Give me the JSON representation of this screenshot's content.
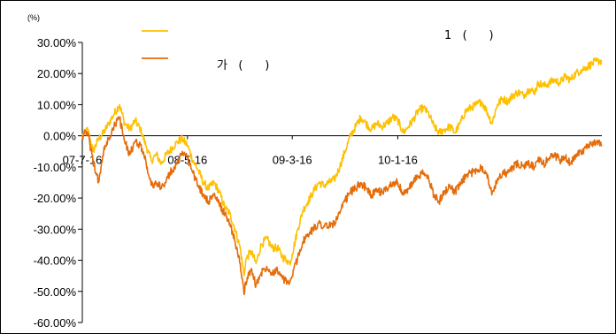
{
  "chart_data": {
    "type": "line",
    "title": "",
    "ylabel": "",
    "unit_label": "(%)",
    "xlabel": "",
    "ylim": [
      -60,
      30
    ],
    "yticks": [
      30,
      20,
      10,
      0,
      -10,
      -20,
      -30,
      -40,
      -50,
      -60
    ],
    "ytick_labels": [
      "30.00%",
      "20.00%",
      "10.00%",
      "0.00%",
      "-10.00%",
      "-20.00%",
      "-30.00%",
      "-40.00%",
      "-50.00%",
      "-60.00%"
    ],
    "x_start": "2007-07-16",
    "x_end": "2011-08-31",
    "xticks": [
      "2007-07-16",
      "2008-05-16",
      "2009-03-16",
      "2010-01-16"
    ],
    "xtick_labels": [
      "07-7-16",
      "08-5-16",
      "09-3-16",
      "10-1-16"
    ],
    "grid": false,
    "legend_position": "top",
    "series": [
      {
        "name": "1   (      )",
        "color": "#FFC000",
        "points": [
          [
            "2007-07-16",
            0
          ],
          [
            "2007-08-01",
            2
          ],
          [
            "2007-08-16",
            -5
          ],
          [
            "2007-09-01",
            -1
          ],
          [
            "2007-09-16",
            1
          ],
          [
            "2007-10-01",
            4
          ],
          [
            "2007-10-16",
            7
          ],
          [
            "2007-11-01",
            10
          ],
          [
            "2007-11-16",
            4
          ],
          [
            "2007-12-01",
            2
          ],
          [
            "2007-12-16",
            5
          ],
          [
            "2008-01-01",
            2
          ],
          [
            "2008-01-16",
            -3
          ],
          [
            "2008-02-01",
            -8
          ],
          [
            "2008-02-16",
            -6
          ],
          [
            "2008-03-01",
            -9
          ],
          [
            "2008-03-16",
            -6
          ],
          [
            "2008-04-01",
            -4
          ],
          [
            "2008-04-16",
            -2
          ],
          [
            "2008-05-01",
            -1
          ],
          [
            "2008-05-16",
            -3
          ],
          [
            "2008-06-01",
            -8
          ],
          [
            "2008-06-16",
            -11
          ],
          [
            "2008-07-01",
            -15
          ],
          [
            "2008-07-16",
            -17
          ],
          [
            "2008-08-01",
            -15
          ],
          [
            "2008-08-16",
            -18
          ],
          [
            "2008-09-01",
            -23
          ],
          [
            "2008-09-16",
            -25
          ],
          [
            "2008-10-01",
            -30
          ],
          [
            "2008-10-16",
            -36
          ],
          [
            "2008-10-27",
            -45
          ],
          [
            "2008-11-01",
            -40
          ],
          [
            "2008-11-16",
            -37
          ],
          [
            "2008-12-01",
            -41
          ],
          [
            "2008-12-16",
            -35
          ],
          [
            "2009-01-01",
            -33
          ],
          [
            "2009-01-16",
            -36
          ],
          [
            "2009-02-01",
            -36
          ],
          [
            "2009-02-16",
            -39
          ],
          [
            "2009-03-01",
            -40
          ],
          [
            "2009-03-09",
            -41
          ],
          [
            "2009-03-16",
            -38
          ],
          [
            "2009-04-01",
            -30
          ],
          [
            "2009-04-16",
            -24
          ],
          [
            "2009-05-01",
            -21
          ],
          [
            "2009-05-16",
            -18
          ],
          [
            "2009-06-01",
            -15
          ],
          [
            "2009-06-16",
            -16
          ],
          [
            "2009-07-01",
            -15
          ],
          [
            "2009-07-16",
            -14
          ],
          [
            "2009-08-01",
            -10
          ],
          [
            "2009-08-16",
            -5
          ],
          [
            "2009-09-01",
            0
          ],
          [
            "2009-09-16",
            3
          ],
          [
            "2009-10-01",
            6
          ],
          [
            "2009-10-16",
            4
          ],
          [
            "2009-11-01",
            2
          ],
          [
            "2009-11-16",
            4
          ],
          [
            "2009-12-01",
            3
          ],
          [
            "2009-12-16",
            4
          ],
          [
            "2010-01-01",
            6
          ],
          [
            "2010-01-16",
            5
          ],
          [
            "2010-02-01",
            1
          ],
          [
            "2010-02-16",
            3
          ],
          [
            "2010-03-01",
            5
          ],
          [
            "2010-03-16",
            8
          ],
          [
            "2010-04-01",
            9
          ],
          [
            "2010-04-16",
            7
          ],
          [
            "2010-05-01",
            3
          ],
          [
            "2010-05-16",
            1
          ],
          [
            "2010-06-01",
            2
          ],
          [
            "2010-06-16",
            3
          ],
          [
            "2010-07-01",
            1
          ],
          [
            "2010-07-16",
            4
          ],
          [
            "2010-08-01",
            8
          ],
          [
            "2010-08-16",
            9
          ],
          [
            "2010-09-01",
            10
          ],
          [
            "2010-09-16",
            11
          ],
          [
            "2010-10-01",
            8
          ],
          [
            "2010-10-16",
            4
          ],
          [
            "2010-11-01",
            10
          ],
          [
            "2010-11-16",
            12
          ],
          [
            "2010-12-01",
            11
          ],
          [
            "2010-12-16",
            13
          ],
          [
            "2011-01-01",
            14
          ],
          [
            "2011-01-16",
            13
          ],
          [
            "2011-02-01",
            15
          ],
          [
            "2011-02-16",
            14
          ],
          [
            "2011-03-01",
            17
          ],
          [
            "2011-03-16",
            16
          ],
          [
            "2011-04-01",
            17
          ],
          [
            "2011-04-16",
            18
          ],
          [
            "2011-05-01",
            17
          ],
          [
            "2011-05-16",
            19
          ],
          [
            "2011-06-01",
            18
          ],
          [
            "2011-06-16",
            20
          ],
          [
            "2011-07-01",
            21
          ],
          [
            "2011-07-16",
            22
          ],
          [
            "2011-08-01",
            23
          ],
          [
            "2011-08-16",
            24
          ],
          [
            "2011-08-31",
            24
          ]
        ]
      },
      {
        "name": "가   (      )",
        "color": "#E46C0A",
        "points": [
          [
            "2007-07-16",
            0
          ],
          [
            "2007-08-01",
            1
          ],
          [
            "2007-08-16",
            -8
          ],
          [
            "2007-09-01",
            -15
          ],
          [
            "2007-09-16",
            -5
          ],
          [
            "2007-10-01",
            -1
          ],
          [
            "2007-10-16",
            3
          ],
          [
            "2007-11-01",
            6
          ],
          [
            "2007-11-16",
            -2
          ],
          [
            "2007-12-01",
            -6
          ],
          [
            "2007-12-16",
            -2
          ],
          [
            "2008-01-01",
            -3
          ],
          [
            "2008-01-16",
            -8
          ],
          [
            "2008-02-01",
            -16
          ],
          [
            "2008-02-16",
            -15
          ],
          [
            "2008-03-01",
            -17
          ],
          [
            "2008-03-16",
            -14
          ],
          [
            "2008-04-01",
            -11
          ],
          [
            "2008-04-16",
            -9
          ],
          [
            "2008-05-01",
            -5
          ],
          [
            "2008-05-16",
            -7
          ],
          [
            "2008-06-01",
            -12
          ],
          [
            "2008-06-16",
            -16
          ],
          [
            "2008-07-01",
            -19
          ],
          [
            "2008-07-16",
            -21
          ],
          [
            "2008-08-01",
            -19
          ],
          [
            "2008-08-16",
            -22
          ],
          [
            "2008-09-01",
            -25
          ],
          [
            "2008-09-16",
            -28
          ],
          [
            "2008-10-01",
            -34
          ],
          [
            "2008-10-16",
            -41
          ],
          [
            "2008-10-27",
            -51
          ],
          [
            "2008-11-01",
            -47
          ],
          [
            "2008-11-16",
            -43
          ],
          [
            "2008-12-01",
            -48
          ],
          [
            "2008-12-16",
            -44
          ],
          [
            "2009-01-01",
            -42
          ],
          [
            "2009-01-16",
            -44
          ],
          [
            "2009-02-01",
            -43
          ],
          [
            "2009-02-16",
            -46
          ],
          [
            "2009-03-01",
            -47
          ],
          [
            "2009-03-09",
            -47
          ],
          [
            "2009-03-16",
            -45
          ],
          [
            "2009-04-01",
            -39
          ],
          [
            "2009-04-16",
            -34
          ],
          [
            "2009-05-01",
            -32
          ],
          [
            "2009-05-16",
            -30
          ],
          [
            "2009-06-01",
            -28
          ],
          [
            "2009-06-16",
            -29
          ],
          [
            "2009-07-01",
            -29
          ],
          [
            "2009-07-16",
            -28
          ],
          [
            "2009-08-01",
            -25
          ],
          [
            "2009-08-16",
            -21
          ],
          [
            "2009-09-01",
            -18
          ],
          [
            "2009-09-16",
            -17
          ],
          [
            "2009-10-01",
            -15
          ],
          [
            "2009-10-16",
            -17
          ],
          [
            "2009-11-01",
            -19
          ],
          [
            "2009-11-16",
            -18
          ],
          [
            "2009-12-01",
            -18
          ],
          [
            "2009-12-16",
            -17
          ],
          [
            "2010-01-01",
            -15
          ],
          [
            "2010-01-16",
            -15
          ],
          [
            "2010-02-01",
            -19
          ],
          [
            "2010-02-16",
            -17
          ],
          [
            "2010-03-01",
            -15
          ],
          [
            "2010-03-16",
            -13
          ],
          [
            "2010-04-01",
            -12
          ],
          [
            "2010-04-16",
            -14
          ],
          [
            "2010-05-01",
            -19
          ],
          [
            "2010-05-16",
            -21
          ],
          [
            "2010-06-01",
            -18
          ],
          [
            "2010-06-16",
            -16
          ],
          [
            "2010-07-01",
            -18
          ],
          [
            "2010-07-16",
            -16
          ],
          [
            "2010-08-01",
            -13
          ],
          [
            "2010-08-16",
            -12
          ],
          [
            "2010-09-01",
            -11
          ],
          [
            "2010-09-16",
            -10
          ],
          [
            "2010-10-01",
            -12
          ],
          [
            "2010-10-16",
            -19
          ],
          [
            "2010-11-01",
            -14
          ],
          [
            "2010-11-16",
            -12
          ],
          [
            "2010-12-01",
            -12
          ],
          [
            "2010-12-16",
            -10
          ],
          [
            "2011-01-01",
            -9
          ],
          [
            "2011-01-16",
            -10
          ],
          [
            "2011-02-01",
            -9
          ],
          [
            "2011-02-16",
            -10
          ],
          [
            "2011-03-01",
            -8
          ],
          [
            "2011-03-16",
            -9
          ],
          [
            "2011-04-01",
            -7
          ],
          [
            "2011-04-16",
            -6
          ],
          [
            "2011-05-01",
            -8
          ],
          [
            "2011-05-16",
            -7
          ],
          [
            "2011-06-01",
            -9
          ],
          [
            "2011-06-16",
            -6
          ],
          [
            "2011-07-01",
            -5
          ],
          [
            "2011-07-16",
            -4
          ],
          [
            "2011-08-01",
            -3
          ],
          [
            "2011-08-16",
            -2
          ],
          [
            "2011-08-31",
            -3
          ]
        ]
      }
    ]
  }
}
